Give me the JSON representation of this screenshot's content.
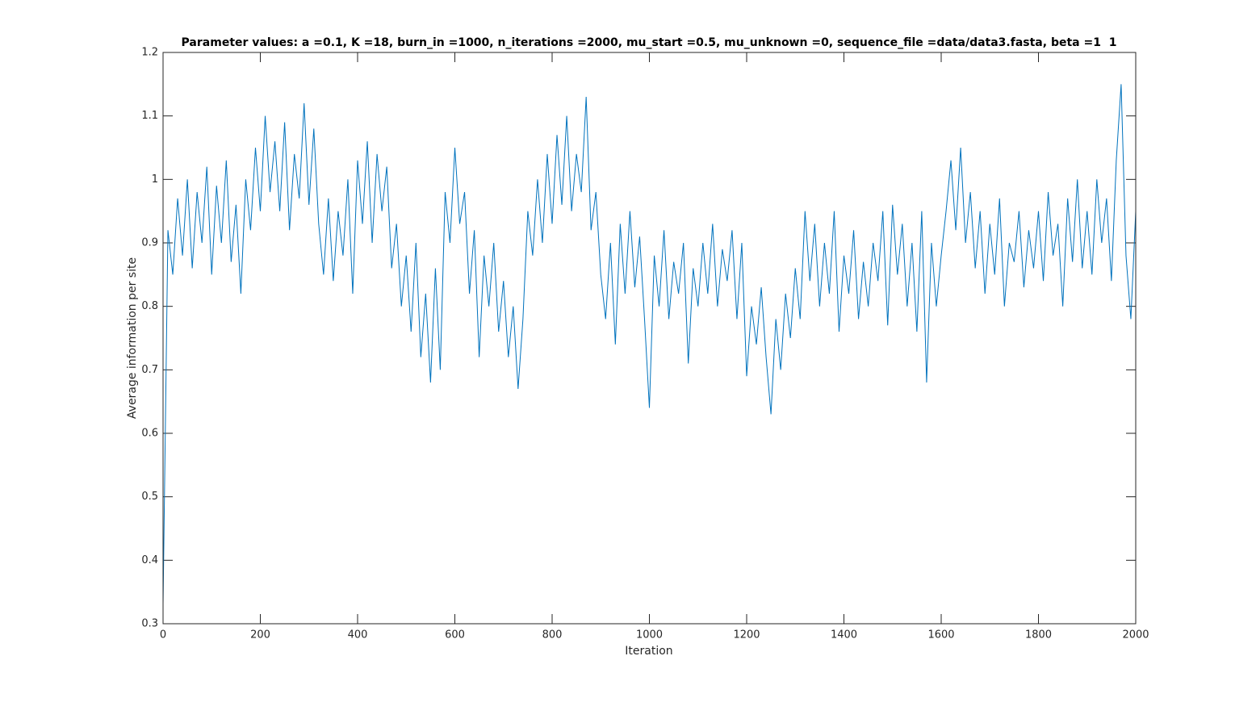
{
  "chart_data": {
    "type": "line",
    "title": "Parameter values: a =0.1, K =18, burn_in =1000, n_iterations =2000, mu_start =0.5, mu_unknown =0, sequence_file =data/data3.fasta, beta =1  1",
    "x_label": "Iteration",
    "y_label": "Average information per site",
    "x": [
      0,
      10,
      20,
      30,
      40,
      50,
      60,
      70,
      80,
      90,
      100,
      110,
      120,
      130,
      140,
      150,
      160,
      170,
      180,
      190,
      200,
      210,
      220,
      230,
      240,
      250,
      260,
      270,
      280,
      290,
      300,
      310,
      320,
      330,
      340,
      350,
      360,
      370,
      380,
      390,
      400,
      410,
      420,
      430,
      440,
      450,
      460,
      470,
      480,
      490,
      500,
      510,
      520,
      530,
      540,
      550,
      560,
      570,
      580,
      590,
      600,
      610,
      620,
      630,
      640,
      650,
      660,
      670,
      680,
      690,
      700,
      710,
      720,
      730,
      740,
      750,
      760,
      770,
      780,
      790,
      800,
      810,
      820,
      830,
      840,
      850,
      860,
      870,
      880,
      890,
      900,
      910,
      920,
      930,
      940,
      950,
      960,
      970,
      980,
      990,
      1000,
      1010,
      1020,
      1030,
      1040,
      1050,
      1060,
      1070,
      1080,
      1090,
      1100,
      1110,
      1120,
      1130,
      1140,
      1150,
      1160,
      1170,
      1180,
      1190,
      1200,
      1210,
      1220,
      1230,
      1240,
      1250,
      1260,
      1270,
      1280,
      1290,
      1300,
      1310,
      1320,
      1330,
      1340,
      1350,
      1360,
      1370,
      1380,
      1390,
      1400,
      1410,
      1420,
      1430,
      1440,
      1450,
      1460,
      1470,
      1480,
      1490,
      1500,
      1510,
      1520,
      1530,
      1540,
      1550,
      1560,
      1570,
      1580,
      1590,
      1600,
      1610,
      1620,
      1630,
      1640,
      1650,
      1660,
      1670,
      1680,
      1690,
      1700,
      1710,
      1720,
      1730,
      1740,
      1750,
      1760,
      1770,
      1780,
      1790,
      1800,
      1810,
      1820,
      1830,
      1840,
      1850,
      1860,
      1870,
      1880,
      1890,
      1900,
      1910,
      1920,
      1930,
      1940,
      1950,
      1960,
      1970,
      1980,
      1990,
      2000
    ],
    "series": [
      {
        "name": "information",
        "color": "#0072bd",
        "values": [
          0.33,
          0.92,
          0.85,
          0.97,
          0.88,
          1.0,
          0.86,
          0.98,
          0.9,
          1.02,
          0.85,
          0.99,
          0.9,
          1.03,
          0.87,
          0.96,
          0.82,
          1.0,
          0.92,
          1.05,
          0.95,
          1.1,
          0.98,
          1.06,
          0.95,
          1.09,
          0.92,
          1.04,
          0.97,
          1.12,
          0.96,
          1.08,
          0.93,
          0.85,
          0.97,
          0.84,
          0.95,
          0.88,
          1.0,
          0.82,
          1.03,
          0.93,
          1.06,
          0.9,
          1.04,
          0.95,
          1.02,
          0.86,
          0.93,
          0.8,
          0.88,
          0.76,
          0.9,
          0.72,
          0.82,
          0.68,
          0.86,
          0.7,
          0.98,
          0.9,
          1.05,
          0.93,
          0.98,
          0.82,
          0.92,
          0.72,
          0.88,
          0.8,
          0.9,
          0.76,
          0.84,
          0.72,
          0.8,
          0.67,
          0.78,
          0.95,
          0.88,
          1.0,
          0.9,
          1.04,
          0.93,
          1.07,
          0.96,
          1.1,
          0.95,
          1.04,
          0.98,
          1.13,
          0.92,
          0.98,
          0.85,
          0.78,
          0.9,
          0.74,
          0.93,
          0.82,
          0.95,
          0.83,
          0.91,
          0.78,
          0.64,
          0.88,
          0.8,
          0.92,
          0.78,
          0.87,
          0.82,
          0.9,
          0.71,
          0.86,
          0.8,
          0.9,
          0.82,
          0.93,
          0.8,
          0.89,
          0.84,
          0.92,
          0.78,
          0.9,
          0.69,
          0.8,
          0.74,
          0.83,
          0.72,
          0.63,
          0.78,
          0.7,
          0.82,
          0.75,
          0.86,
          0.78,
          0.95,
          0.84,
          0.93,
          0.8,
          0.9,
          0.82,
          0.95,
          0.76,
          0.88,
          0.82,
          0.92,
          0.78,
          0.87,
          0.8,
          0.9,
          0.84,
          0.95,
          0.77,
          0.96,
          0.85,
          0.93,
          0.8,
          0.9,
          0.76,
          0.95,
          0.68,
          0.9,
          0.8,
          0.88,
          0.95,
          1.03,
          0.92,
          1.05,
          0.9,
          0.98,
          0.86,
          0.95,
          0.82,
          0.93,
          0.85,
          0.97,
          0.8,
          0.9,
          0.87,
          0.95,
          0.83,
          0.92,
          0.86,
          0.95,
          0.84,
          0.98,
          0.88,
          0.93,
          0.8,
          0.97,
          0.87,
          1.0,
          0.86,
          0.95,
          0.85,
          1.0,
          0.9,
          0.97,
          0.84,
          1.03,
          1.15,
          0.88,
          0.78,
          0.95
        ]
      }
    ],
    "xlim": [
      0,
      2000
    ],
    "xticks": [
      0,
      200,
      400,
      600,
      800,
      1000,
      1200,
      1400,
      1600,
      1800,
      2000
    ],
    "ylim": [
      0.3,
      1.2
    ],
    "yticks": [
      0.3,
      0.4,
      0.5,
      0.6,
      0.7,
      0.8,
      0.9,
      1,
      1.1,
      1.2
    ]
  }
}
